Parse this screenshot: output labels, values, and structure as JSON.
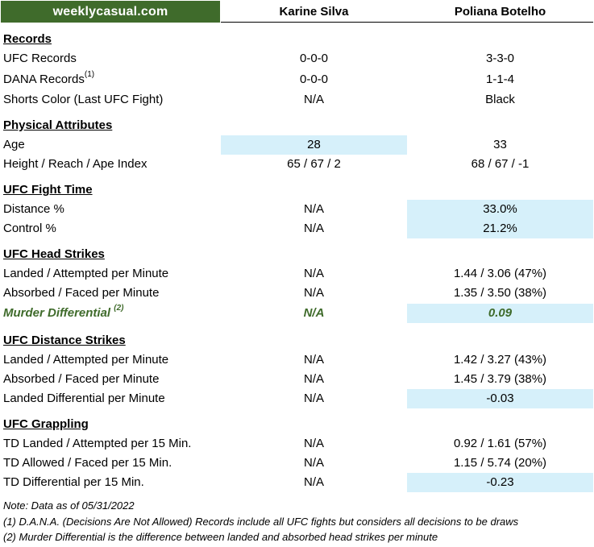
{
  "brand": "weeklycasual.com",
  "fighters": [
    "Karine Silva",
    "Poliana Botelho"
  ],
  "sections": {
    "records": {
      "title": "Records",
      "rows": [
        {
          "label": "UFC Records",
          "c1": "0-0-0",
          "c2": "3-3-0"
        },
        {
          "label": "DANA Records",
          "note_ref": "(1)",
          "c1": "0-0-0",
          "c2": "1-1-4"
        },
        {
          "label": "Shorts Color (Last UFC Fight)",
          "c1": "N/A",
          "c2": "Black"
        }
      ]
    },
    "physical": {
      "title": "Physical Attributes",
      "rows": [
        {
          "label": "Age",
          "c1": "28",
          "c2": "33"
        },
        {
          "label": "Height / Reach / Ape Index",
          "c1": "65 / 67 / 2",
          "c2": "68 / 67 / -1"
        }
      ]
    },
    "fight_time": {
      "title": "UFC Fight Time",
      "rows": [
        {
          "label": "Distance %",
          "c1": "N/A",
          "c2": "33.0%"
        },
        {
          "label": "Control %",
          "c1": "N/A",
          "c2": "21.2%"
        }
      ]
    },
    "head_strikes": {
      "title": "UFC Head Strikes",
      "rows": [
        {
          "label": "Landed / Attempted per Minute",
          "c1": "N/A",
          "c2": "1.44 / 3.06 (47%)"
        },
        {
          "label": "Absorbed / Faced per Minute",
          "c1": "N/A",
          "c2": "1.35 / 3.50 (38%)"
        },
        {
          "label": "Murder Differential",
          "note_ref": "(2)",
          "c1": "N/A",
          "c2": "0.09"
        }
      ]
    },
    "distance_strikes": {
      "title": "UFC Distance Strikes",
      "rows": [
        {
          "label": "Landed / Attempted per Minute",
          "c1": "N/A",
          "c2": "1.42 / 3.27 (43%)"
        },
        {
          "label": "Absorbed / Faced per Minute",
          "c1": "N/A",
          "c2": "1.45 / 3.79 (38%)"
        },
        {
          "label": "Landed Differential per Minute",
          "c1": "N/A",
          "c2": "-0.03"
        }
      ]
    },
    "grappling": {
      "title": "UFC Grappling",
      "rows": [
        {
          "label": "TD Landed / Attempted per 15 Min.",
          "c1": "N/A",
          "c2": "0.92 / 1.61 (57%)"
        },
        {
          "label": "TD Allowed / Faced per 15 Min.",
          "c1": "N/A",
          "c2": "1.15 / 5.74 (20%)"
        },
        {
          "label": "TD Differential per 15 Min.",
          "c1": "N/A",
          "c2": "-0.23"
        }
      ]
    }
  },
  "notes": [
    "Note: Data as of 05/31/2022",
    "(1) D.A.N.A. (Decisions Are Not Allowed) Records include all UFC fights but considers all decisions to be draws",
    "(2) Murder Differential is the difference between landed and absorbed head strikes per minute"
  ],
  "highlight_color": "#d6f0fa",
  "brand_color": "#3f6b2b"
}
